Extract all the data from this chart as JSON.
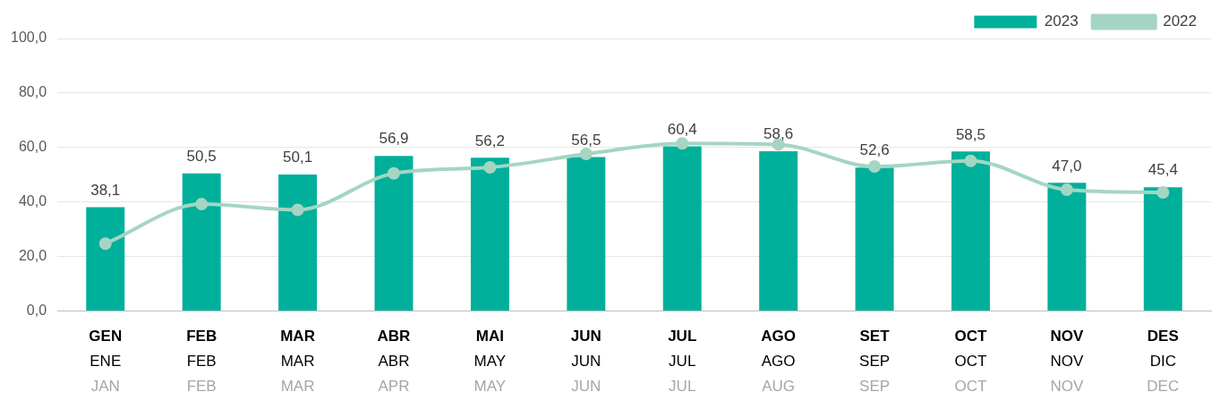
{
  "chart_data": {
    "type": "bar",
    "categories": [
      "GEN\nENE\nJAN",
      "FEB\nFEB\nFEB",
      "MAR\nMAR\nMAR",
      "ABR\nABR\nAPR",
      "MAI\nMAY\nMAY",
      "JUN\nJUN\nJUN",
      "JUL\nJUL\nJUL",
      "AGO\nAGO\nAUG",
      "SET\nSEP\nSEP",
      "OCT\nOCT\nOCT",
      "NOV\nNOV\nNOV",
      "DES\nDIC\nDEC"
    ],
    "series": [
      {
        "name": "2023",
        "color": "#00b09b",
        "values": [
          38.1,
          50.5,
          50.1,
          56.9,
          56.2,
          56.5,
          60.4,
          58.6,
          52.6,
          58.5,
          47.0,
          45.4
        ],
        "value_labels": [
          "38,1",
          "50,5",
          "50,1",
          "56,9",
          "56,2",
          "56,5",
          "60,4",
          "58,6",
          "52,6",
          "58,5",
          "47,0",
          "45,4"
        ]
      },
      {
        "name": "2022",
        "type": "line",
        "color": "#a5d5c3",
        "marker": "circle",
        "values": [
          24.7,
          39.2,
          37.1,
          50.5,
          52.7,
          57.6,
          61.5,
          61.1,
          53.0,
          55.1,
          44.5,
          43.5
        ]
      }
    ],
    "ylim": [
      0,
      100
    ],
    "yticks": [
      {
        "value": 0,
        "label": "0,0"
      },
      {
        "value": 20,
        "label": "20,0"
      },
      {
        "value": 40,
        "label": "40,0"
      },
      {
        "value": 60,
        "label": "60,0"
      },
      {
        "value": 80,
        "label": "80,0"
      },
      {
        "value": 100,
        "label": "100,0"
      }
    ],
    "grid": "y",
    "legend": "top right"
  }
}
